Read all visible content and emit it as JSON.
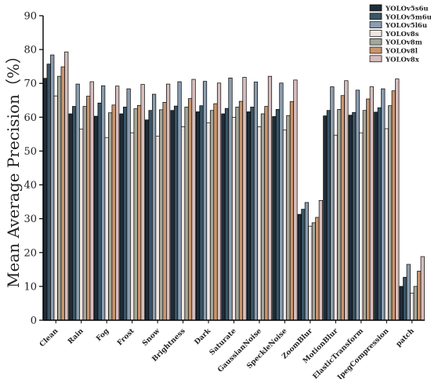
{
  "chart_data": {
    "type": "bar",
    "title": "",
    "xlabel": "",
    "ylabel": "Mean Average Precision（%）",
    "ylim": [
      0,
      90
    ],
    "yticks": [
      0,
      10,
      20,
      30,
      40,
      50,
      60,
      70,
      80,
      90
    ],
    "grid": false,
    "legend_position": "top-right",
    "categories": [
      "Clean",
      "Rain",
      "Fog",
      "Frost",
      "Snow",
      "Brightness",
      "Dark",
      "Saturate",
      "GaussianNoise",
      "SpeckleNoise",
      "ZoomBlur",
      "MotionBlur",
      "ElasticTransform",
      "JpegCompression",
      "patch"
    ],
    "series": [
      {
        "name": "YOLOv5s6u",
        "color": "#1f2d3a",
        "values": [
          71.5,
          61.0,
          60.3,
          61.0,
          59.2,
          62.0,
          61.6,
          61.0,
          61.6,
          60.2,
          31.3,
          60.4,
          60.6,
          61.5,
          10.0
        ]
      },
      {
        "name": "YOLOv5m6u",
        "color": "#3a5566",
        "values": [
          75.7,
          63.2,
          64.2,
          63.0,
          62.0,
          63.3,
          63.4,
          62.6,
          63.0,
          62.3,
          32.8,
          62.0,
          61.4,
          62.8,
          12.7
        ]
      },
      {
        "name": "YOLOv5l6u",
        "color": "#8b9db0",
        "values": [
          78.4,
          69.8,
          69.3,
          68.4,
          66.8,
          70.5,
          70.6,
          71.6,
          70.4,
          70.1,
          34.8,
          69.0,
          68.0,
          68.4,
          16.5
        ]
      },
      {
        "name": "YOLOv8s",
        "color": "#f0e6e2",
        "values": [
          66.3,
          56.5,
          54.0,
          55.4,
          54.4,
          57.2,
          58.3,
          60.0,
          57.2,
          56.2,
          27.8,
          54.7,
          55.4,
          56.6,
          8.0
        ]
      },
      {
        "name": "YOLOv8m",
        "color": "#a4a69a",
        "values": [
          72.1,
          63.2,
          61.3,
          62.5,
          62.2,
          63.0,
          62.0,
          63.0,
          61.0,
          60.5,
          28.8,
          62.3,
          62.0,
          63.4,
          10.0
        ]
      },
      {
        "name": "YOLOv8l",
        "color": "#c9956f",
        "values": [
          74.9,
          66.2,
          63.6,
          63.5,
          64.4,
          65.5,
          64.0,
          64.7,
          63.2,
          64.6,
          30.4,
          66.4,
          65.4,
          67.8,
          14.5
        ]
      },
      {
        "name": "YOLOv8x",
        "color": "#d7bebd",
        "values": [
          79.3,
          70.5,
          69.2,
          69.7,
          69.8,
          71.2,
          70.1,
          71.8,
          72.1,
          71.0,
          35.4,
          70.8,
          69.0,
          71.3,
          18.8
        ]
      }
    ]
  }
}
